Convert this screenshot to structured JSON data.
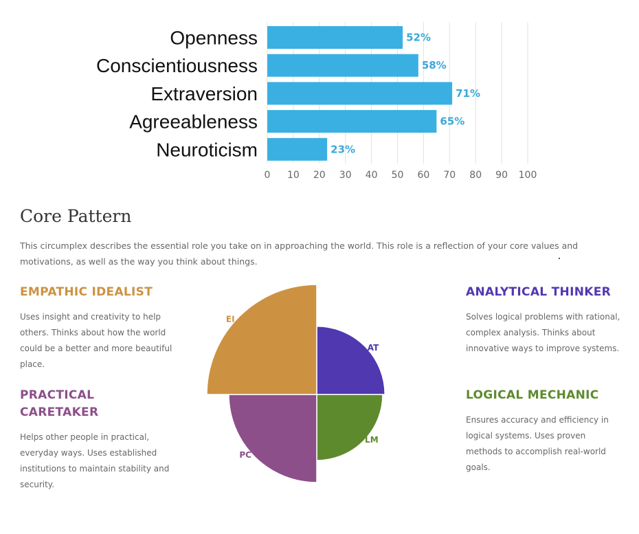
{
  "chart_data": [
    {
      "type": "bar",
      "orientation": "horizontal",
      "categories": [
        "Openness",
        "Conscientiousness",
        "Extraversion",
        "Agreeableness",
        "Neuroticism"
      ],
      "values": [
        52,
        58,
        71,
        65,
        23
      ],
      "data_labels": [
        "52%",
        "58%",
        "71%",
        "65%",
        "23%"
      ],
      "xticks": [
        "0",
        "10",
        "20",
        "30",
        "40",
        "50",
        "60",
        "70",
        "80",
        "90",
        "100"
      ],
      "xlim": [
        0,
        100
      ],
      "grid": true,
      "bar_color": "#3ab0e2",
      "label_color": "#3aa8d8"
    },
    {
      "type": "pie",
      "variant": "circumplex",
      "categories": [
        "AT",
        "LM",
        "PC",
        "EI"
      ],
      "values": [
        0.62,
        0.6,
        0.8,
        1.0
      ],
      "colors": [
        "#5038b0",
        "#5e8a2e",
        "#8c4f8a",
        "#cc9242"
      ]
    }
  ],
  "section": {
    "title": "Core Pattern",
    "description": "This circumplex describes the essential role you take on in approaching the world. This role is a reflection of your core values and motivations, as well as the way you think about things."
  },
  "patterns": {
    "ei": {
      "heading": "EMPATHIC IDEALIST",
      "text": "Uses insight and creativity to help others. Thinks about how the world could be a better and more beautiful place.",
      "color": "#cc9242"
    },
    "pc": {
      "heading": "PRACTICAL CARETAKER",
      "text": "Helps other people in practical, everyday ways. Uses established institutions to maintain stability and security.",
      "color": "#8c4f8a"
    },
    "at": {
      "heading": "ANALYTICAL THINKER",
      "text": "Solves logical problems with rational, complex analysis. Thinks about innovative ways to improve systems.",
      "color": "#5038b0"
    },
    "lm": {
      "heading": "LOGICAL MECHANIC",
      "text": "Ensures accuracy and efficiency in logical systems. Uses proven methods to accomplish real-world goals.",
      "color": "#5e8a2e"
    }
  }
}
